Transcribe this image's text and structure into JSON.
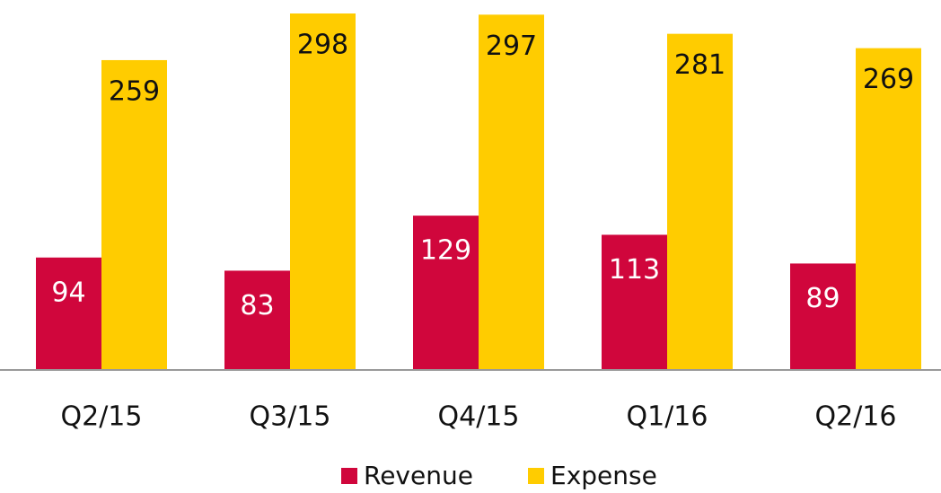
{
  "chart_data": {
    "type": "bar",
    "categories": [
      "Q2/15",
      "Q3/15",
      "Q4/15",
      "Q1/16",
      "Q2/16"
    ],
    "series": [
      {
        "name": "Revenue",
        "color": "#d0063c",
        "values": [
          94,
          83,
          129,
          113,
          89
        ]
      },
      {
        "name": "Expense",
        "color": "#ffcc00",
        "values": [
          259,
          298,
          297,
          281,
          269
        ]
      }
    ],
    "legend": "bottom"
  }
}
